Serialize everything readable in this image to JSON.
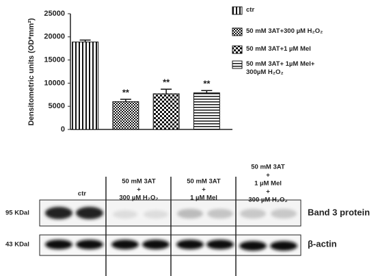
{
  "chart_data": {
    "type": "bar",
    "ylabel": "Densitometric units (OD*mm²)",
    "categories": [
      "ctr",
      "50 mM 3AT+300 µM H₂O₂",
      "50 mM  3AT+1 µM Mel",
      "50 mM 3AT+ 1µM Mel+ 300µM H₂O₂"
    ],
    "values": [
      18900,
      6000,
      7700,
      7900
    ],
    "errors": [
      400,
      500,
      1000,
      500
    ],
    "significance": [
      null,
      "**",
      "**",
      "**"
    ],
    "patterns": [
      "vertical",
      "checker-fine",
      "checker",
      "horizontal"
    ],
    "ylim": [
      0,
      25000
    ],
    "yticks": [
      0,
      5000,
      10000,
      15000,
      20000,
      25000
    ],
    "grid": false
  },
  "blot": {
    "columns": [
      [
        "ctr"
      ],
      [
        "50 mM 3AT",
        "+",
        "300 µM  H₂O₂"
      ],
      [
        "50 mM 3AT",
        "+",
        "1 µM Mel"
      ],
      [
        "50 mM 3AT",
        "+",
        "1 µM Mel",
        "+",
        "300 µM H₂O₂"
      ]
    ],
    "rows": [
      {
        "size": "95 KDal",
        "name": "Band 3 protein"
      },
      {
        "size": "43 KDal",
        "name": "β-actin"
      }
    ]
  }
}
